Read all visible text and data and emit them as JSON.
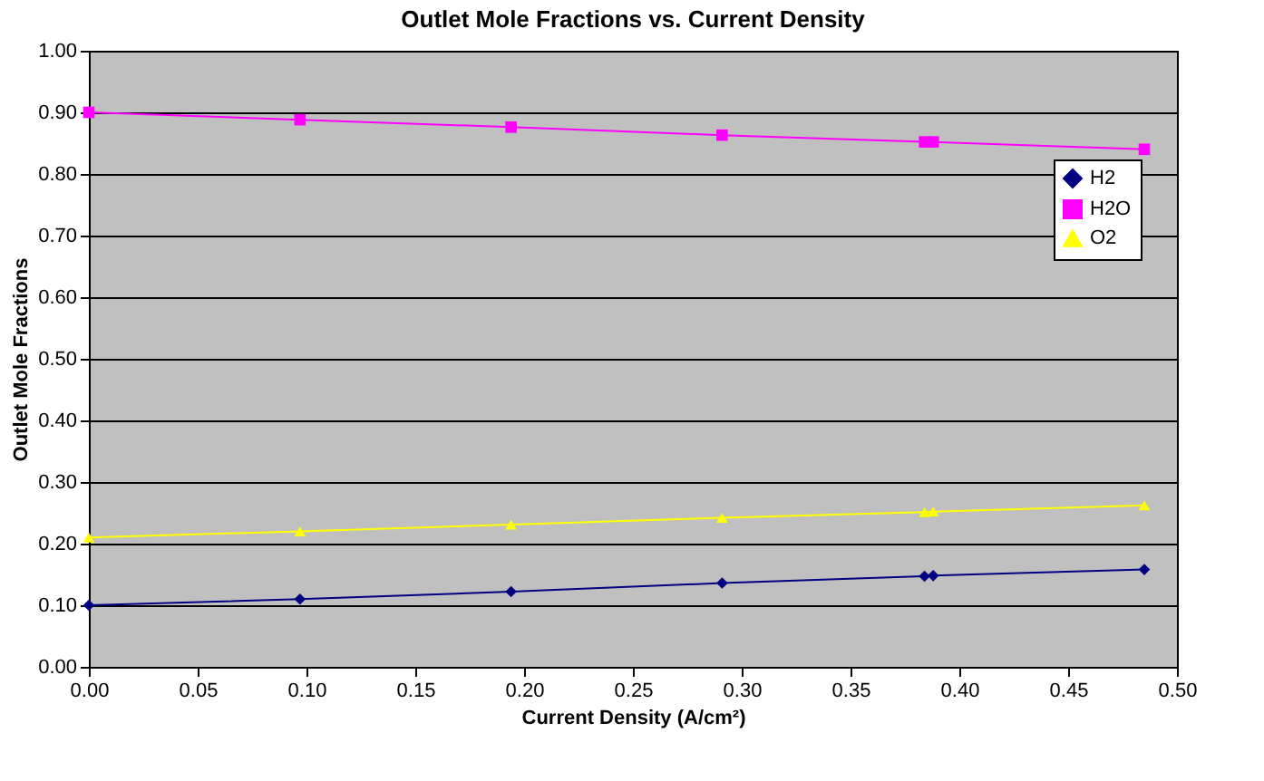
{
  "chart_data": {
    "type": "line",
    "title": "Outlet Mole Fractions vs. Current Density",
    "xlabel": "Current Density (A/cm²)",
    "ylabel": "Outlet Mole Fractions",
    "x": [
      0,
      0.097,
      0.194,
      0.291,
      0.384,
      0.388,
      0.485
    ],
    "series": [
      {
        "name": "H2",
        "color": "#000080",
        "marker": "diamond",
        "values": [
          0.1,
          0.11,
          0.122,
          0.136,
          0.147,
          0.148,
          0.158
        ]
      },
      {
        "name": "H2O",
        "color": "#ff00ff",
        "marker": "square",
        "values": [
          0.9,
          0.888,
          0.876,
          0.863,
          0.852,
          0.852,
          0.84
        ]
      },
      {
        "name": "O2",
        "color": "#ffff00",
        "marker": "triangle",
        "values": [
          0.21,
          0.22,
          0.231,
          0.242,
          0.251,
          0.252,
          0.262
        ]
      }
    ],
    "xlim": [
      0,
      0.5
    ],
    "xticks": [
      {
        "value": 0,
        "label": "0.00"
      },
      {
        "value": 0.05,
        "label": "0.05"
      },
      {
        "value": 0.1,
        "label": "0.10"
      },
      {
        "value": 0.15,
        "label": "0.15"
      },
      {
        "value": 0.2,
        "label": "0.20"
      },
      {
        "value": 0.25,
        "label": "0.25"
      },
      {
        "value": 0.3,
        "label": "0.30"
      },
      {
        "value": 0.35,
        "label": "0.35"
      },
      {
        "value": 0.4,
        "label": "0.40"
      },
      {
        "value": 0.45,
        "label": "0.45"
      },
      {
        "value": 0.5,
        "label": "0.50"
      }
    ],
    "ylim": [
      0,
      1
    ],
    "yticks": [
      {
        "value": 0,
        "label": "0.00"
      },
      {
        "value": 0.1,
        "label": "0.10"
      },
      {
        "value": 0.2,
        "label": "0.20"
      },
      {
        "value": 0.3,
        "label": "0.30"
      },
      {
        "value": 0.4,
        "label": "0.40"
      },
      {
        "value": 0.5,
        "label": "0.50"
      },
      {
        "value": 0.6,
        "label": "0.60"
      },
      {
        "value": 0.7,
        "label": "0.70"
      },
      {
        "value": 0.8,
        "label": "0.80"
      },
      {
        "value": 0.9,
        "label": "0.90"
      },
      {
        "value": 1,
        "label": "1.00"
      }
    ],
    "grid": "y",
    "legend": "right",
    "line_style": "solid"
  }
}
